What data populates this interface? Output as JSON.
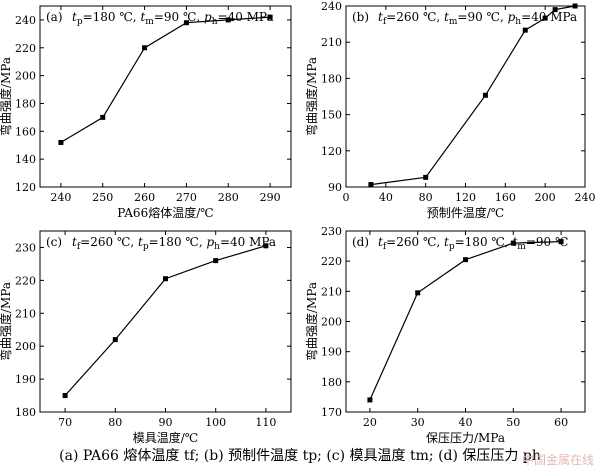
{
  "caption": "(a) PA66 熔体温度 tf;  (b) 预制件温度 tp;  (c) 模具温度 tm;  (d) 保压压力 ph",
  "watermark": "中国金属在线",
  "chart_data": [
    {
      "type": "line",
      "panel_label": "(a)",
      "condition": "tp=180 ℃,  tm=90 ℃,  ph=40 MPa",
      "xlabel": "PA66熔体温度/℃",
      "ylabel": "弯曲强度/MPa",
      "xlim": [
        235,
        295
      ],
      "ylim": [
        120,
        250
      ],
      "xticks": [
        240,
        250,
        260,
        270,
        280,
        290
      ],
      "yticks": [
        120,
        140,
        160,
        180,
        200,
        220,
        240
      ],
      "x": [
        240,
        250,
        260,
        270,
        280,
        290
      ],
      "y": [
        152,
        170,
        220,
        238,
        240,
        242
      ],
      "marker": "square",
      "color": "#000000"
    },
    {
      "type": "line",
      "panel_label": "(b)",
      "condition": "tf=260 ℃,  tm=90 ℃,  ph=40 MPa",
      "xlabel": "预制件温度/℃",
      "ylabel": "弯曲强度/MPa",
      "xlim": [
        0,
        240
      ],
      "ylim": [
        90,
        240
      ],
      "xticks": [
        0,
        40,
        80,
        120,
        160,
        200,
        240
      ],
      "yticks": [
        90,
        120,
        150,
        180,
        210,
        240
      ],
      "x": [
        25,
        80,
        140,
        180,
        200,
        210,
        230
      ],
      "y": [
        92,
        98,
        166,
        220,
        230,
        237,
        240
      ],
      "marker": "square",
      "color": "#000000"
    },
    {
      "type": "line",
      "panel_label": "(c)",
      "condition": "tf=260 ℃,  tp=180 ℃,  ph=40 MPa",
      "xlabel": "模具温度/℃",
      "ylabel": "弯曲强度/MPa",
      "xlim": [
        65,
        115
      ],
      "ylim": [
        180,
        235
      ],
      "xticks": [
        70,
        80,
        90,
        100,
        110
      ],
      "yticks": [
        180,
        190,
        200,
        210,
        220,
        230
      ],
      "x": [
        70,
        80,
        90,
        100,
        110
      ],
      "y": [
        185,
        202,
        220.5,
        226,
        230.5
      ],
      "marker": "square",
      "color": "#000000"
    },
    {
      "type": "line",
      "panel_label": "(d)",
      "condition": "tf=260 ℃,  tp=180 ℃,  tm=90 ℃",
      "xlabel": "保压压力/MPa",
      "ylabel": "弯曲强度/MPa",
      "xlim": [
        15,
        65
      ],
      "ylim": [
        170,
        230
      ],
      "xticks": [
        20,
        30,
        40,
        50,
        60
      ],
      "yticks": [
        170,
        180,
        190,
        200,
        210,
        220,
        230
      ],
      "x": [
        20,
        30,
        40,
        50,
        60
      ],
      "y": [
        174,
        209.5,
        220.5,
        226,
        226.5
      ],
      "marker": "square",
      "color": "#000000"
    }
  ]
}
